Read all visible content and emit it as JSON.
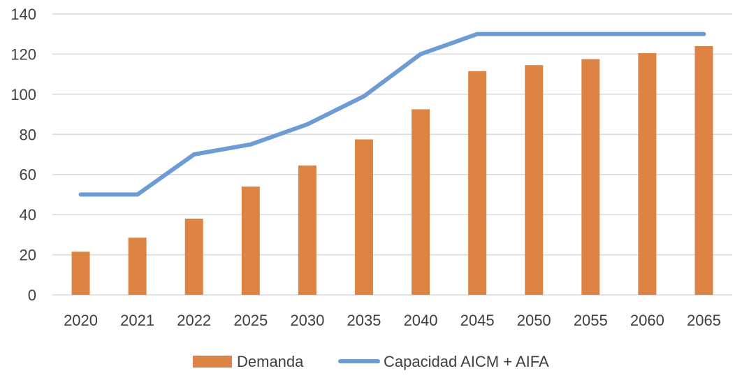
{
  "chart_data": {
    "type": "bar+line",
    "categories": [
      "2020",
      "2021",
      "2022",
      "2025",
      "2030",
      "2035",
      "2040",
      "2045",
      "2050",
      "2055",
      "2060",
      "2065"
    ],
    "series": [
      {
        "name": "Demanda",
        "type": "bar",
        "color": "#dd8344",
        "values": [
          21.5,
          28.5,
          38,
          54,
          64.5,
          77.5,
          92.5,
          111.5,
          114.5,
          117.5,
          120.5,
          124
        ]
      },
      {
        "name": "Capacidad AICM + AIFA",
        "type": "line",
        "color": "#6d9bd3",
        "values": [
          50,
          50,
          70,
          75,
          85,
          99,
          120,
          130,
          130,
          130,
          130,
          130
        ]
      }
    ],
    "ylim": [
      0,
      140
    ],
    "yticks": [
      0,
      20,
      40,
      60,
      80,
      100,
      120,
      140
    ],
    "grid": true,
    "gridColor": "#d9d9d9",
    "legend": "bottom"
  }
}
